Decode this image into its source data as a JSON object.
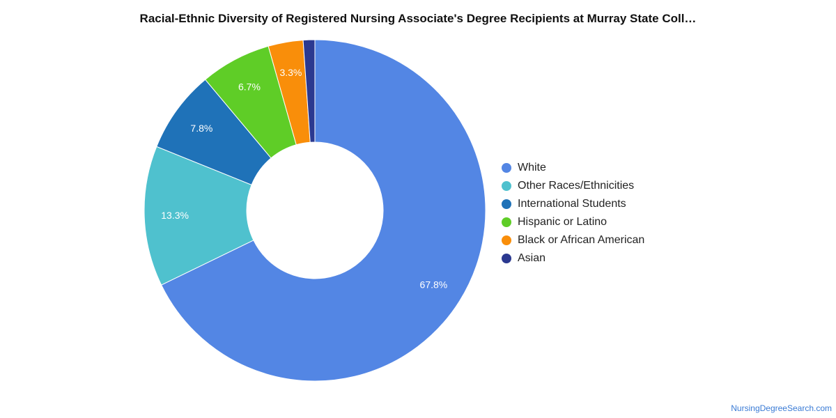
{
  "chart_data": {
    "type": "pie",
    "title": "Racial-Ethnic Diversity of Registered Nursing Associate's Degree Recipients at Murray State Coll…",
    "donut": true,
    "legend_position": "right",
    "series": [
      {
        "name": "White",
        "value": 67.8,
        "label": "67.8%",
        "color": "#5386e4"
      },
      {
        "name": "Other Races/Ethnicities",
        "value": 13.3,
        "label": "13.3%",
        "color": "#4fc1ce"
      },
      {
        "name": "International Students",
        "value": 7.8,
        "label": "7.8%",
        "color": "#1f72b8"
      },
      {
        "name": "Hispanic or Latino",
        "value": 6.7,
        "label": "6.7%",
        "color": "#5fcd27"
      },
      {
        "name": "Black or African American",
        "value": 3.3,
        "label": "3.3%",
        "color": "#f98e0a"
      },
      {
        "name": "Asian",
        "value": 1.1,
        "label": "",
        "color": "#2b3990"
      }
    ]
  },
  "watermark": "NursingDegreeSearch.com"
}
